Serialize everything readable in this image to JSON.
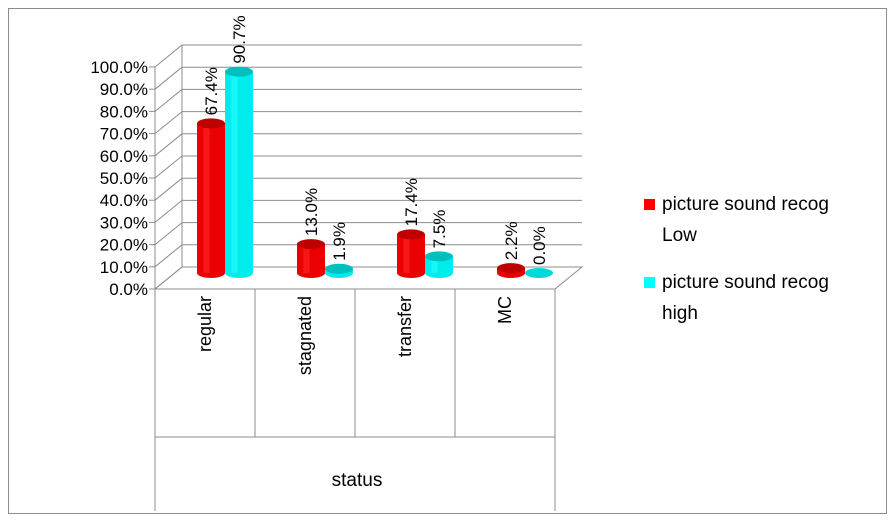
{
  "chart_data": {
    "type": "bar",
    "title": "",
    "xlabel": "status",
    "ylabel": "",
    "ylim": [
      0,
      100
    ],
    "yticks": [
      "0.0%",
      "10.0%",
      "20.0%",
      "30.0%",
      "40.0%",
      "50.0%",
      "60.0%",
      "70.0%",
      "80.0%",
      "90.0%",
      "100.0%"
    ],
    "categories": [
      "regular",
      "stagnated",
      "transfer",
      "MC"
    ],
    "series": [
      {
        "name": "picture sound recog Low",
        "legend_lines": [
          "picture sound recog",
          "Low"
        ],
        "color": "#ff0000",
        "values": [
          67.4,
          13.0,
          17.4,
          2.2
        ],
        "labels": [
          "67.4%",
          "13.0%",
          "17.4%",
          "2.2%"
        ]
      },
      {
        "name": "picture sound recog high",
        "legend_lines": [
          "picture sound recog",
          "high"
        ],
        "color": "#00ffff",
        "values": [
          90.7,
          1.9,
          7.5,
          0.0
        ],
        "labels": [
          "90.7%",
          "1.9%",
          "7.5%",
          "0.0%"
        ]
      }
    ],
    "grid": true,
    "legend_position": "right",
    "style": "3d-cylinder"
  }
}
